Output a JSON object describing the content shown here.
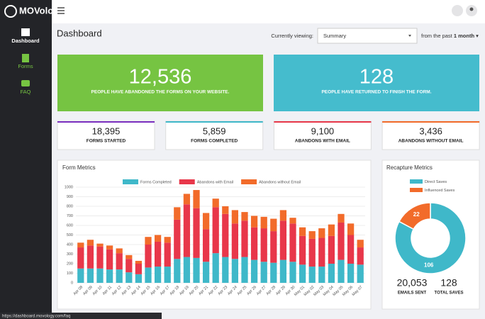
{
  "logo": "MOVology",
  "sidebar": [
    {
      "label": "Dashboard"
    },
    {
      "label": "Forms"
    },
    {
      "label": "FAQ"
    }
  ],
  "header": {
    "title": "Dashboard",
    "viewing_label": "Currently viewing:",
    "selected": "Summary",
    "period_prefix": "from the past",
    "period": "1 month"
  },
  "highlights": [
    {
      "value": "12,536",
      "label": "PEOPLE HAVE ABANDONED THE FORMS ON YOUR WEBSITE."
    },
    {
      "value": "128",
      "label": "PEOPLE HAVE RETURNED TO FINISH THE FORM."
    }
  ],
  "stats": [
    {
      "value": "18,395",
      "label": "FORMS STARTED",
      "color": "#7b2fbf"
    },
    {
      "value": "5,859",
      "label": "FORMS COMPLETED",
      "color": "#3fb8c9"
    },
    {
      "value": "9,100",
      "label": "ABANDONS WITH EMAIL",
      "color": "#e8374a"
    },
    {
      "value": "3,436",
      "label": "ABANDONS WITHOUT EMAIL",
      "color": "#f26b2a"
    }
  ],
  "chart_data": [
    {
      "type": "bar",
      "stacked": true,
      "title": "Form Metrics",
      "grid": true,
      "categories": [
        "Apr 08",
        "Apr 09",
        "Apr 10",
        "Apr 11",
        "Apr 12",
        "Apr 13",
        "Apr 14",
        "Apr 15",
        "Apr 16",
        "Apr 17",
        "Apr 18",
        "Apr 19",
        "Apr 20",
        "Apr 21",
        "Apr 22",
        "Apr 23",
        "Apr 24",
        "Apr 25",
        "Apr 26",
        "Apr 27",
        "Apr 28",
        "Apr 29",
        "Apr 30",
        "May 01",
        "May 02",
        "May 03",
        "May 04",
        "May 05",
        "May 06",
        "May 07"
      ],
      "series": [
        {
          "name": "Forms Completed",
          "color": "#3fb8c9",
          "values": [
            150,
            150,
            150,
            140,
            140,
            110,
            90,
            160,
            170,
            170,
            250,
            270,
            260,
            220,
            310,
            270,
            250,
            270,
            240,
            220,
            210,
            240,
            220,
            190,
            170,
            170,
            200,
            240,
            200,
            190
          ]
        },
        {
          "name": "Abandons with Email",
          "color": "#e8374a",
          "values": [
            220,
            240,
            230,
            210,
            170,
            140,
            110,
            240,
            260,
            250,
            410,
            550,
            520,
            340,
            480,
            450,
            370,
            380,
            340,
            350,
            330,
            410,
            400,
            300,
            290,
            300,
            290,
            390,
            300,
            180
          ]
        },
        {
          "name": "Abandons without Email",
          "color": "#f26b2a",
          "values": [
            50,
            60,
            30,
            40,
            50,
            40,
            30,
            80,
            70,
            60,
            130,
            110,
            190,
            170,
            90,
            80,
            140,
            90,
            120,
            120,
            130,
            110,
            60,
            90,
            80,
            100,
            120,
            90,
            120,
            80
          ]
        }
      ],
      "ylim": [
        0,
        1000
      ],
      "yticks": [
        0,
        100,
        200,
        300,
        400,
        500,
        600,
        700,
        800,
        900,
        1000
      ]
    },
    {
      "type": "pie",
      "donut": true,
      "title": "Recapture Metrics",
      "categories": [
        "Direct Saves",
        "Influenced Saves"
      ],
      "values": [
        106,
        22
      ],
      "colors": [
        "#3fb8c9",
        "#f26b2a"
      ]
    }
  ],
  "recapture_stats": [
    {
      "value": "20,053",
      "label": "EMAILS SENT"
    },
    {
      "value": "128",
      "label": "TOTAL SAVES"
    }
  ],
  "status_url": "https://dashboard.movology.com/faq"
}
